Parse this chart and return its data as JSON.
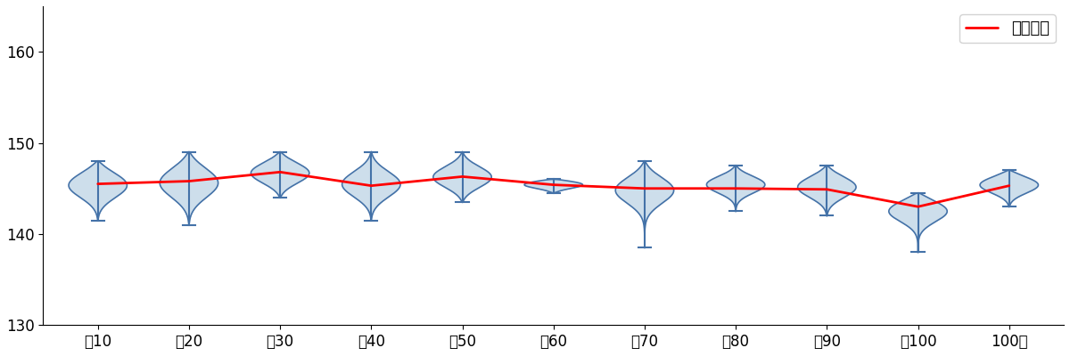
{
  "categories": [
    "～10",
    "～20",
    "～30",
    "～40",
    "～50",
    "～60",
    "～70",
    "～80",
    "～90",
    "～100",
    "100～"
  ],
  "means": [
    145.5,
    145.8,
    146.8,
    145.3,
    146.3,
    145.4,
    145.0,
    145.0,
    144.9,
    143.0,
    145.3
  ],
  "mins": [
    141.5,
    141.0,
    144.0,
    141.5,
    143.5,
    144.5,
    138.5,
    142.5,
    142.0,
    138.0,
    143.0
  ],
  "maxs": [
    148.0,
    149.0,
    149.0,
    149.0,
    149.0,
    146.0,
    148.0,
    147.5,
    147.5,
    144.5,
    147.0
  ],
  "q1": [
    144.0,
    144.0,
    145.5,
    144.0,
    145.0,
    145.0,
    143.5,
    144.5,
    144.0,
    141.5,
    144.5
  ],
  "q3": [
    147.0,
    147.5,
    148.0,
    147.0,
    147.5,
    146.0,
    146.5,
    146.5,
    146.5,
    144.0,
    146.5
  ],
  "violin_color": "#c5d9e8",
  "violin_edge_color": "#4472a8",
  "line_color": "#ff0000",
  "ylim": [
    130,
    165
  ],
  "yticks": [
    130,
    140,
    150,
    160
  ],
  "legend_label": "球速平均",
  "violin_width": 0.32,
  "figsize": [
    12.0,
    4.0
  ],
  "dpi": 100
}
